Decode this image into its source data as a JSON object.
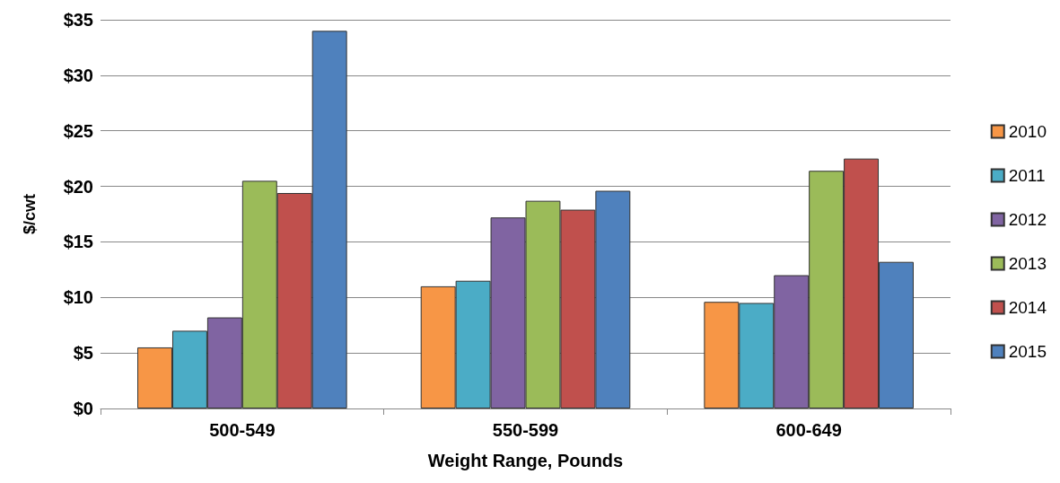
{
  "chart_data": {
    "type": "bar",
    "xlabel": "Weight Range, Pounds",
    "ylabel": "$/cwt",
    "categories": [
      "500-549",
      "550-599",
      "600-649"
    ],
    "series": [
      {
        "name": "2010",
        "color": "#f79646",
        "values": [
          5.5,
          11.0,
          9.6
        ]
      },
      {
        "name": "2011",
        "color": "#4bacc6",
        "values": [
          7.0,
          11.5,
          9.5
        ]
      },
      {
        "name": "2012",
        "color": "#8064a2",
        "values": [
          8.2,
          17.2,
          12.0
        ]
      },
      {
        "name": "2013",
        "color": "#9bbb59",
        "values": [
          20.5,
          18.7,
          21.4
        ]
      },
      {
        "name": "2014",
        "color": "#c0504d",
        "values": [
          19.4,
          17.9,
          22.5
        ]
      },
      {
        "name": "2015",
        "color": "#4f81bd",
        "values": [
          34.0,
          19.6,
          13.2
        ]
      }
    ],
    "ylim": [
      0,
      35
    ],
    "yticks": [
      {
        "value": 0,
        "label": "$0"
      },
      {
        "value": 5,
        "label": "$5"
      },
      {
        "value": 10,
        "label": "$10"
      },
      {
        "value": 15,
        "label": "$15"
      },
      {
        "value": 20,
        "label": "$20"
      },
      {
        "value": 25,
        "label": "$25"
      },
      {
        "value": 30,
        "label": "$30"
      },
      {
        "value": 35,
        "label": "$35"
      }
    ],
    "grid": "y",
    "legend": "right"
  }
}
